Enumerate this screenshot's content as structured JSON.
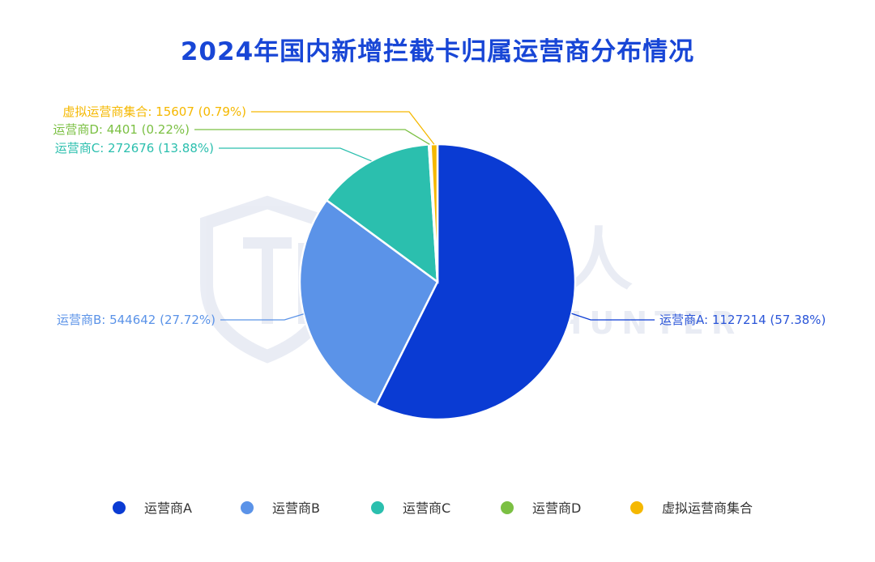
{
  "chart_data": {
    "type": "pie",
    "title": "2024年国内新增拦截卡归属运营商分布情况",
    "slices": [
      {
        "name": "运营商A",
        "value": 1127214,
        "percent_label": "57.38%",
        "color": "#0a3bd3",
        "label_side": "right"
      },
      {
        "name": "运营商B",
        "value": 544642,
        "percent_label": "27.72%",
        "color": "#5b93e8",
        "label_side": "left"
      },
      {
        "name": "运营商C",
        "value": 272676,
        "percent_label": "13.88%",
        "color": "#2bbfae",
        "label_side": "left"
      },
      {
        "name": "运营商D",
        "value": 4401,
        "percent_label": "0.22%",
        "color": "#7bc043",
        "label_side": "left"
      },
      {
        "name": "虚拟运营商集合",
        "value": 15607,
        "percent_label": "0.79%",
        "color": "#f5b800",
        "label_side": "left"
      }
    ],
    "legend": {
      "placement": "bottom",
      "items": [
        "运营商A",
        "运营商B",
        "运营商C",
        "运营商D",
        "虚拟运营商集合"
      ]
    }
  },
  "watermark": {
    "cn_text": "威胁猎人",
    "en_text": "THREAT HUNTER"
  }
}
